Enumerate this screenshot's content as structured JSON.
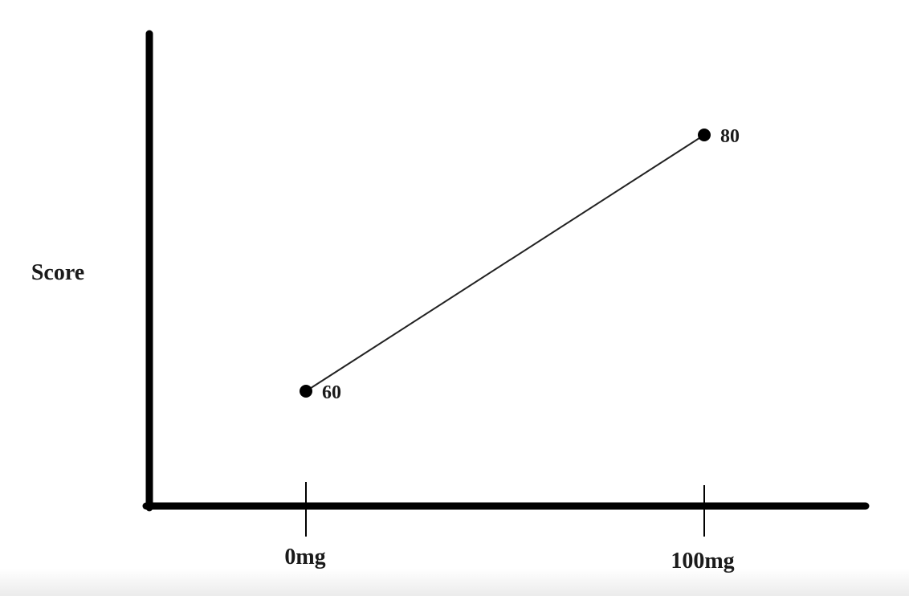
{
  "chart_data": {
    "type": "line",
    "title": "",
    "xlabel": "",
    "ylabel": "Score",
    "categories": [
      "0mg",
      "100mg"
    ],
    "values": [
      60,
      80
    ],
    "data_labels": [
      "60",
      "80"
    ],
    "grid": false,
    "legend": "none",
    "colors": {
      "line": "#222222",
      "marker": "#000000",
      "axis": "#000000"
    }
  }
}
